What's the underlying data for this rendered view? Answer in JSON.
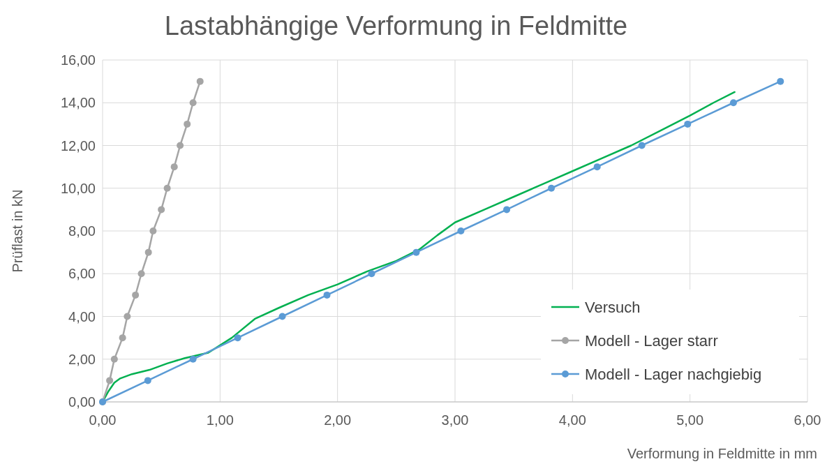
{
  "chart_data": {
    "type": "line",
    "title": "Lastabhängige Verformung in Feldmitte",
    "xlabel": "Verformung in Feldmitte in mm",
    "ylabel": "Prüflast in kN",
    "xlim": [
      0,
      6
    ],
    "ylim": [
      0,
      16
    ],
    "xticks": [
      {
        "value": 0,
        "label": "0,00"
      },
      {
        "value": 1,
        "label": "1,00"
      },
      {
        "value": 2,
        "label": "2,00"
      },
      {
        "value": 3,
        "label": "3,00"
      },
      {
        "value": 4,
        "label": "4,00"
      },
      {
        "value": 5,
        "label": "5,00"
      },
      {
        "value": 6,
        "label": "6,00"
      }
    ],
    "yticks": [
      {
        "value": 0,
        "label": "0,00"
      },
      {
        "value": 2,
        "label": "2,00"
      },
      {
        "value": 4,
        "label": "4,00"
      },
      {
        "value": 6,
        "label": "6,00"
      },
      {
        "value": 8,
        "label": "8,00"
      },
      {
        "value": 10,
        "label": "10,00"
      },
      {
        "value": 12,
        "label": "12,00"
      },
      {
        "value": 14,
        "label": "14,00"
      },
      {
        "value": 16,
        "label": "16,00"
      }
    ],
    "grid": true,
    "legend": "bottom right",
    "series": [
      {
        "name": "Versuch",
        "color": "#00b050",
        "marker": "none",
        "x": [
          0,
          0.05,
          0.1,
          0.15,
          0.25,
          0.4,
          0.55,
          0.7,
          0.9,
          1.1,
          1.3,
          1.5,
          1.75,
          2.0,
          2.25,
          2.5,
          2.7,
          2.85,
          3.0,
          3.25,
          3.5,
          3.75,
          4.0,
          4.25,
          4.5,
          4.75,
          5.0,
          5.2,
          5.38
        ],
        "values": [
          0,
          0.5,
          0.9,
          1.1,
          1.3,
          1.5,
          1.8,
          2.05,
          2.3,
          3.0,
          3.9,
          4.4,
          5.0,
          5.5,
          6.1,
          6.6,
          7.15,
          7.8,
          8.4,
          9.0,
          9.6,
          10.2,
          10.8,
          11.4,
          12.0,
          12.7,
          13.4,
          14.0,
          14.5
        ]
      },
      {
        "name": "Modell - Lager starr",
        "color": "#a5a5a5",
        "marker": "circle",
        "x": [
          0,
          0.06,
          0.1,
          0.17,
          0.21,
          0.28,
          0.33,
          0.39,
          0.43,
          0.5,
          0.55,
          0.61,
          0.66,
          0.72,
          0.77,
          0.83
        ],
        "values": [
          0,
          1,
          2,
          3,
          4,
          5,
          6,
          7,
          8,
          9,
          10,
          11,
          12,
          13,
          14,
          15
        ]
      },
      {
        "name": "Modell - Lager nachgiebig",
        "color": "#5b9bd5",
        "marker": "circle",
        "x": [
          0,
          0.385,
          0.77,
          1.15,
          1.53,
          1.91,
          2.29,
          2.67,
          3.05,
          3.44,
          3.82,
          4.21,
          4.59,
          4.98,
          5.37,
          5.77
        ],
        "values": [
          0,
          1,
          2,
          3,
          4,
          5,
          6,
          7,
          8,
          9,
          10,
          11,
          12,
          13,
          14,
          15
        ]
      }
    ]
  }
}
